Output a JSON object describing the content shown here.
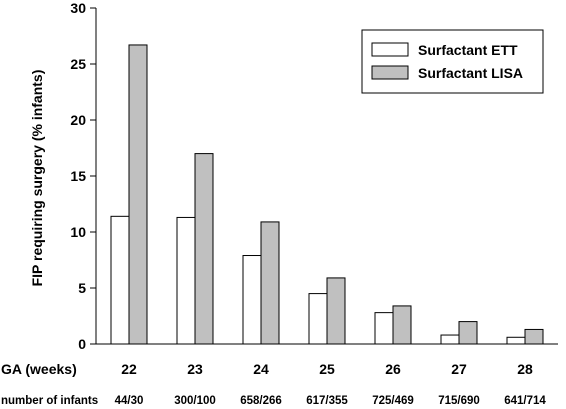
{
  "chart_data": {
    "type": "bar",
    "ylabel": "FIP requiring surgery (% infants)",
    "ylim": [
      0,
      30
    ],
    "yticks": [
      "0",
      "5",
      "10",
      "15",
      "20",
      "25",
      "30"
    ],
    "x_row_label": "GA (weeks)",
    "categories": [
      "22",
      "23",
      "24",
      "25",
      "26",
      "27",
      "28"
    ],
    "count_row_label": "number of infants",
    "counts": [
      "44/30",
      "300/100",
      "658/266",
      "617/355",
      "725/469",
      "715/690",
      "641/714"
    ],
    "series": [
      {
        "name": "Surfactant ETT",
        "color": "#ffffff",
        "values": [
          11.4,
          11.3,
          7.9,
          4.5,
          2.8,
          0.8,
          0.6
        ]
      },
      {
        "name": "Surfactant LISA",
        "color": "#c0c0c0",
        "values": [
          26.7,
          17.0,
          10.9,
          5.9,
          3.4,
          2.0,
          1.3
        ]
      }
    ],
    "legend_position": "top-right",
    "grid": false
  }
}
